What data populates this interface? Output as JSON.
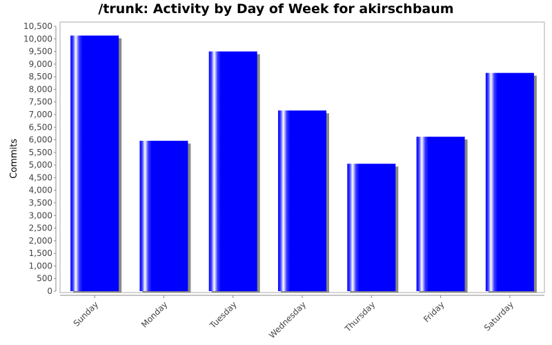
{
  "chart_data": {
    "type": "bar",
    "title": "/trunk: Activity by Day of Week for akirschbaum",
    "xlabel": "",
    "ylabel": "Commits",
    "categories": [
      "Sunday",
      "Monday",
      "Tuesday",
      "Wednesday",
      "Thursday",
      "Friday",
      "Saturday"
    ],
    "values": [
      10130,
      5960,
      9500,
      7160,
      5050,
      6120,
      8650
    ],
    "ylim": [
      0,
      10500
    ],
    "yticks": [
      0,
      500,
      1000,
      1500,
      2000,
      2500,
      3000,
      3500,
      4000,
      4500,
      5000,
      5500,
      6000,
      6500,
      7000,
      7500,
      8000,
      8500,
      9000,
      9500,
      10000,
      10500
    ],
    "ytick_labels": [
      "0",
      "500",
      "1,000",
      "1,500",
      "2,000",
      "2,500",
      "3,000",
      "3,500",
      "4,000",
      "4,500",
      "5,000",
      "5,500",
      "6,000",
      "6,500",
      "7,000",
      "7,500",
      "8,000",
      "8,500",
      "9,000",
      "9,500",
      "10,000",
      "10,500"
    ],
    "grid": false,
    "legend": "none",
    "colors": {
      "bar": "#0000ff",
      "bar_shadow": "#888888",
      "axis": "#888888",
      "plot_border": "#aaaaaa"
    }
  }
}
